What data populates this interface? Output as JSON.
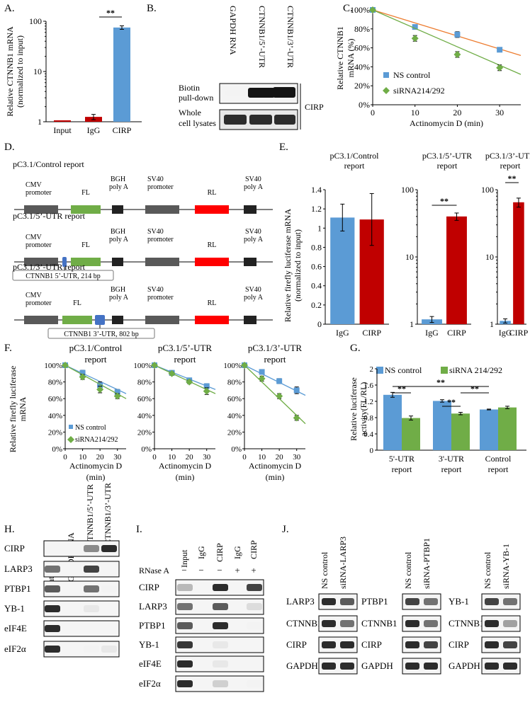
{
  "colors": {
    "blue": "#5b9bd5",
    "red": "#c00000",
    "green": "#70ad47",
    "orange": "#ed7d31",
    "gray": "#595959",
    "black": "#222222",
    "fl_green": "#70ad47",
    "rl_red": "#ff0000",
    "utr_blue": "#4472c4"
  },
  "panelA": {
    "letter": "A.",
    "ylabel1": "Relative CTNNB1 mRNA",
    "ylabel2": "(normalized to input)",
    "categories": [
      "Input",
      "IgG",
      "CIRP"
    ],
    "sig": "**",
    "ticks": [
      "100",
      "10",
      "1"
    ]
  },
  "panelB": {
    "letter": "B.",
    "lanes": [
      "GAPDH RNA",
      "CTNNB1/5’-UTR",
      "CTNNB1/3’-UTR"
    ],
    "row1a": "Biotin",
    "row1b": "pull-down",
    "row2a": "Whole",
    "row2b": "cell lysates",
    "protein": "CIRP"
  },
  "panelC": {
    "letter": "C.",
    "ylabel1": "Relative CTNNB1",
    "ylabel2": "mRNA (%)",
    "xlabel": "Actinomycin  D (min)",
    "yticks": [
      "100%",
      "80%",
      "60%",
      "40%",
      "20%",
      "0%"
    ],
    "xticks": [
      "0",
      "10",
      "20",
      "30"
    ],
    "legend": [
      "NS control",
      "siRNA214/292"
    ]
  },
  "panelD": {
    "letter": "D.",
    "constructs": [
      {
        "title": "pC3.1/Control report",
        "tag": ""
      },
      {
        "title": "pC3.1/5’-UTR report",
        "tag": "CTNNB1 5’-UTR, 214 bp"
      },
      {
        "title": "pC3.1/3’-UTR report",
        "tag": "CTNNB1 3’-UTR, 802 bp"
      }
    ],
    "labels": {
      "cmv1": "CMV",
      "cmv2": "promoter",
      "fl": "FL",
      "bgh1": "BGH",
      "bgh2": "poly A",
      "sv1": "SV40",
      "sv2": "promoter",
      "rl": "RL",
      "svp1": "SV40",
      "svp2": "poly A"
    }
  },
  "panelE": {
    "letter": "E.",
    "ylabel1": "Relative firefly luciferase mRNA",
    "ylabel2": "(normalized to input)",
    "subtitles": [
      [
        "pC3.1/Control",
        "report"
      ],
      [
        "pC3.1/5’-UTR",
        "report"
      ],
      [
        "pC3.1/3’-UTR",
        "report"
      ]
    ],
    "categories": [
      "IgG",
      "CIRP"
    ],
    "sig": "**",
    "ticks1": [
      "1.4",
      "1.2",
      "1",
      "0.8",
      "0.6",
      "0.4",
      "0.2",
      "0"
    ],
    "ticks2": [
      "100",
      "10",
      "1"
    ]
  },
  "panelF": {
    "letter": "F.",
    "ylabel1": "Relative firefly luciferase",
    "ylabel2": "mRNA",
    "subtitles": [
      [
        "pC3.1/Control",
        "report"
      ],
      [
        "pC3.1/5’-UTR",
        "report"
      ],
      [
        "pC3.1/3’-UTR",
        "report"
      ]
    ],
    "yticks": [
      "100%",
      "80%",
      "60%",
      "40%",
      "20%",
      "0%"
    ],
    "xticks": [
      "0",
      "10",
      "20",
      "30"
    ],
    "xlabel1": "Actinomycin   D",
    "xlabel2": "(min)",
    "legend": [
      "NS control",
      "siRNA214/292"
    ]
  },
  "panelG": {
    "letter": "G.",
    "legend": [
      "NS control",
      "siRNA 214/292"
    ],
    "ylabel1": "Relative luciferase",
    "ylabel2": "activity(FL/RL)",
    "yticks": [
      "2",
      "1.6",
      "1.2",
      "0.8",
      "0.4",
      "0"
    ],
    "groups": [
      [
        "5'-UTR",
        "report"
      ],
      [
        "3'-UTR",
        "report"
      ],
      [
        "Control",
        "report"
      ]
    ],
    "sig": "**"
  },
  "panelH": {
    "letter": "H.",
    "lanes": [
      "Input",
      "GAPDH RNA",
      "CTNNB1/5’-UTR",
      "CTNNB1/3’-UTR"
    ],
    "rows": [
      "CIRP",
      "LARP3",
      "PTBP1",
      "YB-1",
      "eIF4E",
      "eIF2α"
    ]
  },
  "panelI": {
    "letter": "I.",
    "lanes": [
      "Input",
      "IgG",
      "CIRP",
      "IgG",
      "CIRP"
    ],
    "rnase": "RNase A",
    "signs": [
      "−",
      "−",
      "−",
      "+",
      "+"
    ],
    "rows": [
      "CIRP",
      "LARP3",
      "PTBP1",
      "YB-1",
      "eIF4E",
      "eIF2α"
    ]
  },
  "panelJ": {
    "letter": "J.",
    "groups": [
      {
        "lanes": [
          "NS control",
          "siRNA-LARP3"
        ],
        "rows": [
          "LARP3",
          "CTNNB1",
          "CIRP",
          "GAPDH"
        ]
      },
      {
        "lanes": [
          "NS control",
          "siRNA-PTBP1"
        ],
        "rows": [
          "PTBP1",
          "CTNNB1",
          "CIRP",
          "GAPDH"
        ]
      },
      {
        "lanes": [
          "NS control",
          "siRNA-YB-1"
        ],
        "rows": [
          "YB-1",
          "CTNNB1",
          "CIRP",
          "GAPDH"
        ]
      }
    ]
  },
  "chart_data": [
    {
      "panel": "A",
      "type": "bar",
      "scale": "log",
      "ylim": [
        1,
        100
      ],
      "categories": [
        "Input",
        "IgG",
        "CIRP"
      ],
      "values": [
        1,
        1.25,
        75
      ],
      "errors": [
        0,
        0.15,
        6
      ],
      "colors": [
        "#c00000",
        "#c00000",
        "#5b9bd5"
      ]
    },
    {
      "panel": "C",
      "type": "scatter",
      "xlim": [
        0,
        35
      ],
      "ylim": [
        0,
        100
      ],
      "x": [
        0,
        10,
        20,
        30
      ],
      "series": [
        {
          "name": "NS control",
          "values": [
            100,
            82,
            74,
            58
          ],
          "errors": [
            0,
            2,
            3,
            1
          ],
          "fit_end": 52,
          "color": "#5b9bd5",
          "line": "#ed7d31"
        },
        {
          "name": "siRNA214/292",
          "values": [
            100,
            70,
            53,
            39
          ],
          "errors": [
            0,
            3,
            3,
            3
          ],
          "fit_end": 32,
          "color": "#70ad47",
          "line": "#70ad47"
        }
      ]
    },
    {
      "panel": "E1",
      "type": "bar",
      "ylim": [
        0,
        1.4
      ],
      "categories": [
        "IgG",
        "CIRP"
      ],
      "values": [
        1.11,
        1.09
      ],
      "errors": [
        0.14,
        0.27
      ]
    },
    {
      "panel": "E2",
      "type": "bar",
      "scale": "log",
      "ylim": [
        1,
        100
      ],
      "categories": [
        "IgG",
        "CIRP"
      ],
      "values": [
        1.18,
        40
      ],
      "errors": [
        0.12,
        5
      ]
    },
    {
      "panel": "E3",
      "type": "bar",
      "scale": "log",
      "ylim": [
        1,
        100
      ],
      "categories": [
        "IgG",
        "CIRP"
      ],
      "values": [
        1.12,
        65
      ],
      "errors": [
        0.08,
        10
      ]
    },
    {
      "panel": "F1",
      "type": "scatter",
      "xlim": [
        0,
        35
      ],
      "ylim": [
        0,
        100
      ],
      "x": [
        0,
        10,
        20,
        30
      ],
      "series": [
        {
          "name": "NS control",
          "values": [
            100,
            91,
            76,
            68
          ],
          "errors": [
            0,
            3,
            4,
            3
          ],
          "fit_end": 66
        },
        {
          "name": "siRNA214/292",
          "values": [
            100,
            86,
            71,
            63
          ],
          "errors": [
            0,
            3,
            4,
            3
          ],
          "fit_end": 60
        }
      ]
    },
    {
      "panel": "F2",
      "type": "scatter",
      "xlim": [
        0,
        35
      ],
      "ylim": [
        0,
        100
      ],
      "x": [
        0,
        10,
        20,
        30
      ],
      "series": [
        {
          "name": "NS control",
          "values": [
            100,
            91,
            82,
            75
          ],
          "errors": [
            0,
            2,
            2,
            3
          ],
          "fit_end": 71
        },
        {
          "name": "siRNA214/292",
          "values": [
            100,
            90,
            80,
            69
          ],
          "errors": [
            0,
            2,
            2,
            4
          ],
          "fit_end": 66
        }
      ]
    },
    {
      "panel": "F3",
      "type": "scatter",
      "xlim": [
        0,
        35
      ],
      "ylim": [
        0,
        100
      ],
      "x": [
        0,
        10,
        20,
        30
      ],
      "series": [
        {
          "name": "NS control",
          "values": [
            100,
            92,
            81,
            70
          ],
          "errors": [
            0,
            2,
            3,
            4
          ],
          "fit_end": 64
        },
        {
          "name": "siRNA214/292",
          "values": [
            100,
            84,
            63,
            37
          ],
          "errors": [
            0,
            3,
            3,
            3
          ],
          "fit_end": 30
        }
      ]
    },
    {
      "panel": "G",
      "type": "bar",
      "ylim": [
        0,
        2
      ],
      "categories": [
        "5'-UTR report",
        "3'-UTR report",
        "Control report"
      ],
      "series": [
        {
          "name": "NS control",
          "values": [
            1.36,
            1.21,
            1.0
          ],
          "errors": [
            0.06,
            0.03,
            0.01
          ]
        },
        {
          "name": "siRNA 214/292",
          "values": [
            0.79,
            0.9,
            1.05
          ],
          "errors": [
            0.05,
            0.03,
            0.03
          ]
        }
      ]
    }
  ]
}
